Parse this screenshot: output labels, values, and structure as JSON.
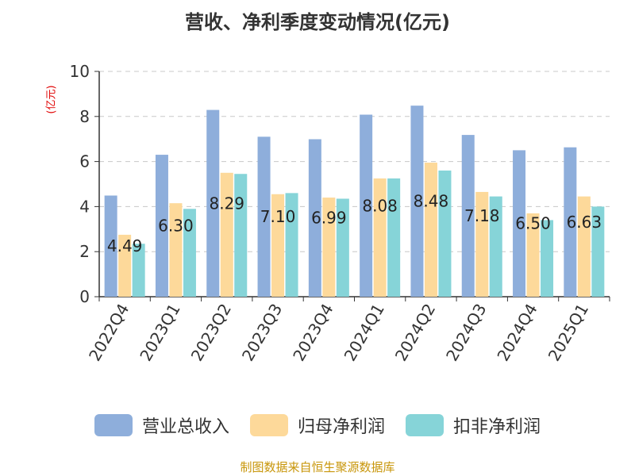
{
  "chart_data": {
    "type": "bar",
    "title": "营收、净利季度变动情况(亿元)",
    "ylabel": "(亿元)",
    "xlabel": "",
    "ylim": [
      0,
      10
    ],
    "yticks": [
      0,
      2,
      4,
      6,
      8,
      10
    ],
    "grid": true,
    "legend_position": "bottom",
    "categories": [
      "2022Q4",
      "2023Q1",
      "2023Q2",
      "2023Q3",
      "2023Q4",
      "2024Q1",
      "2024Q2",
      "2024Q3",
      "2024Q4",
      "2025Q1"
    ],
    "series": [
      {
        "name": "营业总收入",
        "color": "#8eaedb",
        "values": [
          4.49,
          6.3,
          8.29,
          7.1,
          6.99,
          8.08,
          8.48,
          7.18,
          6.5,
          6.63
        ],
        "labels": [
          "4.49",
          "6.30",
          "8.29",
          "7.10",
          "6.99",
          "8.08",
          "8.48",
          "7.18",
          "6.50",
          "6.63"
        ]
      },
      {
        "name": "归母净利润",
        "color": "#fdd99a",
        "values": [
          2.75,
          4.15,
          5.5,
          4.55,
          4.4,
          5.25,
          5.95,
          4.65,
          3.7,
          4.45
        ]
      },
      {
        "name": "扣非净利润",
        "color": "#86d4d8",
        "values": [
          2.35,
          3.9,
          5.45,
          4.6,
          4.35,
          5.25,
          5.6,
          4.45,
          3.4,
          4.0
        ]
      }
    ]
  },
  "source": "制图数据来自恒生聚源数据库"
}
